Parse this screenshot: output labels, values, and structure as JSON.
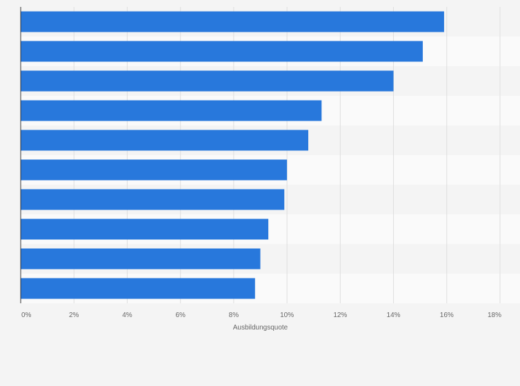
{
  "chart_data": {
    "type": "bar",
    "orientation": "horizontal",
    "categories": [
      "",
      "",
      "",
      "",
      "",
      "",
      "",
      "",
      "",
      ""
    ],
    "values": [
      15.9,
      15.1,
      14.0,
      11.3,
      10.8,
      10.0,
      9.9,
      9.3,
      9.0,
      8.8
    ],
    "unit": "%",
    "xlabel": "Ausbildungsquote",
    "ylabel": "",
    "xlim": [
      0,
      18
    ],
    "x_ticks": [
      "0%",
      "2%",
      "4%",
      "6%",
      "8%",
      "10%",
      "12%",
      "14%",
      "16%",
      "18%"
    ],
    "grid": true,
    "bar_color": "#2878dc",
    "row_band_colors": [
      "#f4f4f4",
      "#fafafa"
    ],
    "grid_color": "#dedede",
    "axis_color": "#333333",
    "tick_label_color": "#666666"
  }
}
